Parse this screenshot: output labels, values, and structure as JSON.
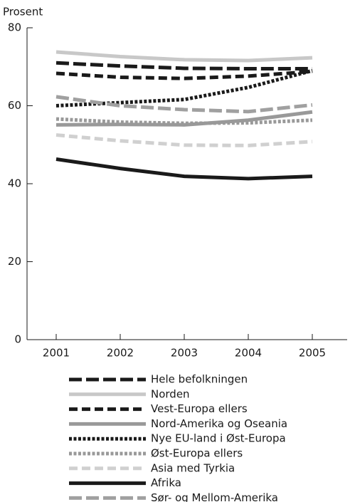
{
  "chart_data": {
    "type": "line",
    "y_label": "Prosent",
    "x": [
      "2001",
      "2002",
      "2003",
      "2004",
      "2005"
    ],
    "ylim": [
      0,
      80
    ],
    "yticks": [
      0,
      20,
      40,
      60,
      80
    ],
    "series": [
      {
        "name": "Hele befolkningen",
        "color": "#1a1a1a",
        "style": "longdash",
        "values": [
          71.0,
          70.2,
          69.6,
          69.5,
          69.5
        ]
      },
      {
        "name": "Norden",
        "color": "#c8c8c8",
        "style": "solid",
        "values": [
          73.8,
          72.6,
          71.8,
          71.6,
          72.3
        ]
      },
      {
        "name": "Vest-Europa ellers",
        "color": "#1a1a1a",
        "style": "dashed",
        "values": [
          68.3,
          67.3,
          67.0,
          67.6,
          68.8
        ]
      },
      {
        "name": "Nord-Amerika og Oseania",
        "color": "#999999",
        "style": "solid",
        "values": [
          55.1,
          55.2,
          55.1,
          56.3,
          58.4
        ]
      },
      {
        "name": "Nye EU-land i Øst-Europa",
        "color": "#1a1a1a",
        "style": "dotted",
        "values": [
          60.0,
          60.8,
          61.6,
          64.7,
          69.0
        ]
      },
      {
        "name": "Øst-Europa ellers",
        "color": "#999999",
        "style": "dotted",
        "values": [
          56.6,
          55.8,
          55.5,
          55.6,
          56.3
        ]
      },
      {
        "name": "Asia med Tyrkia",
        "color": "#d0d0d0",
        "style": "dashed",
        "values": [
          52.5,
          51.0,
          49.9,
          49.8,
          50.8
        ]
      },
      {
        "name": "Afrika",
        "color": "#1a1a1a",
        "style": "solid",
        "values": [
          46.3,
          43.9,
          41.9,
          41.3,
          41.9
        ]
      },
      {
        "name": "Sør- og Mellom-Amerika",
        "color": "#a0a0a0",
        "style": "longdash",
        "values": [
          62.3,
          60.0,
          59.0,
          58.5,
          60.2
        ]
      }
    ]
  }
}
